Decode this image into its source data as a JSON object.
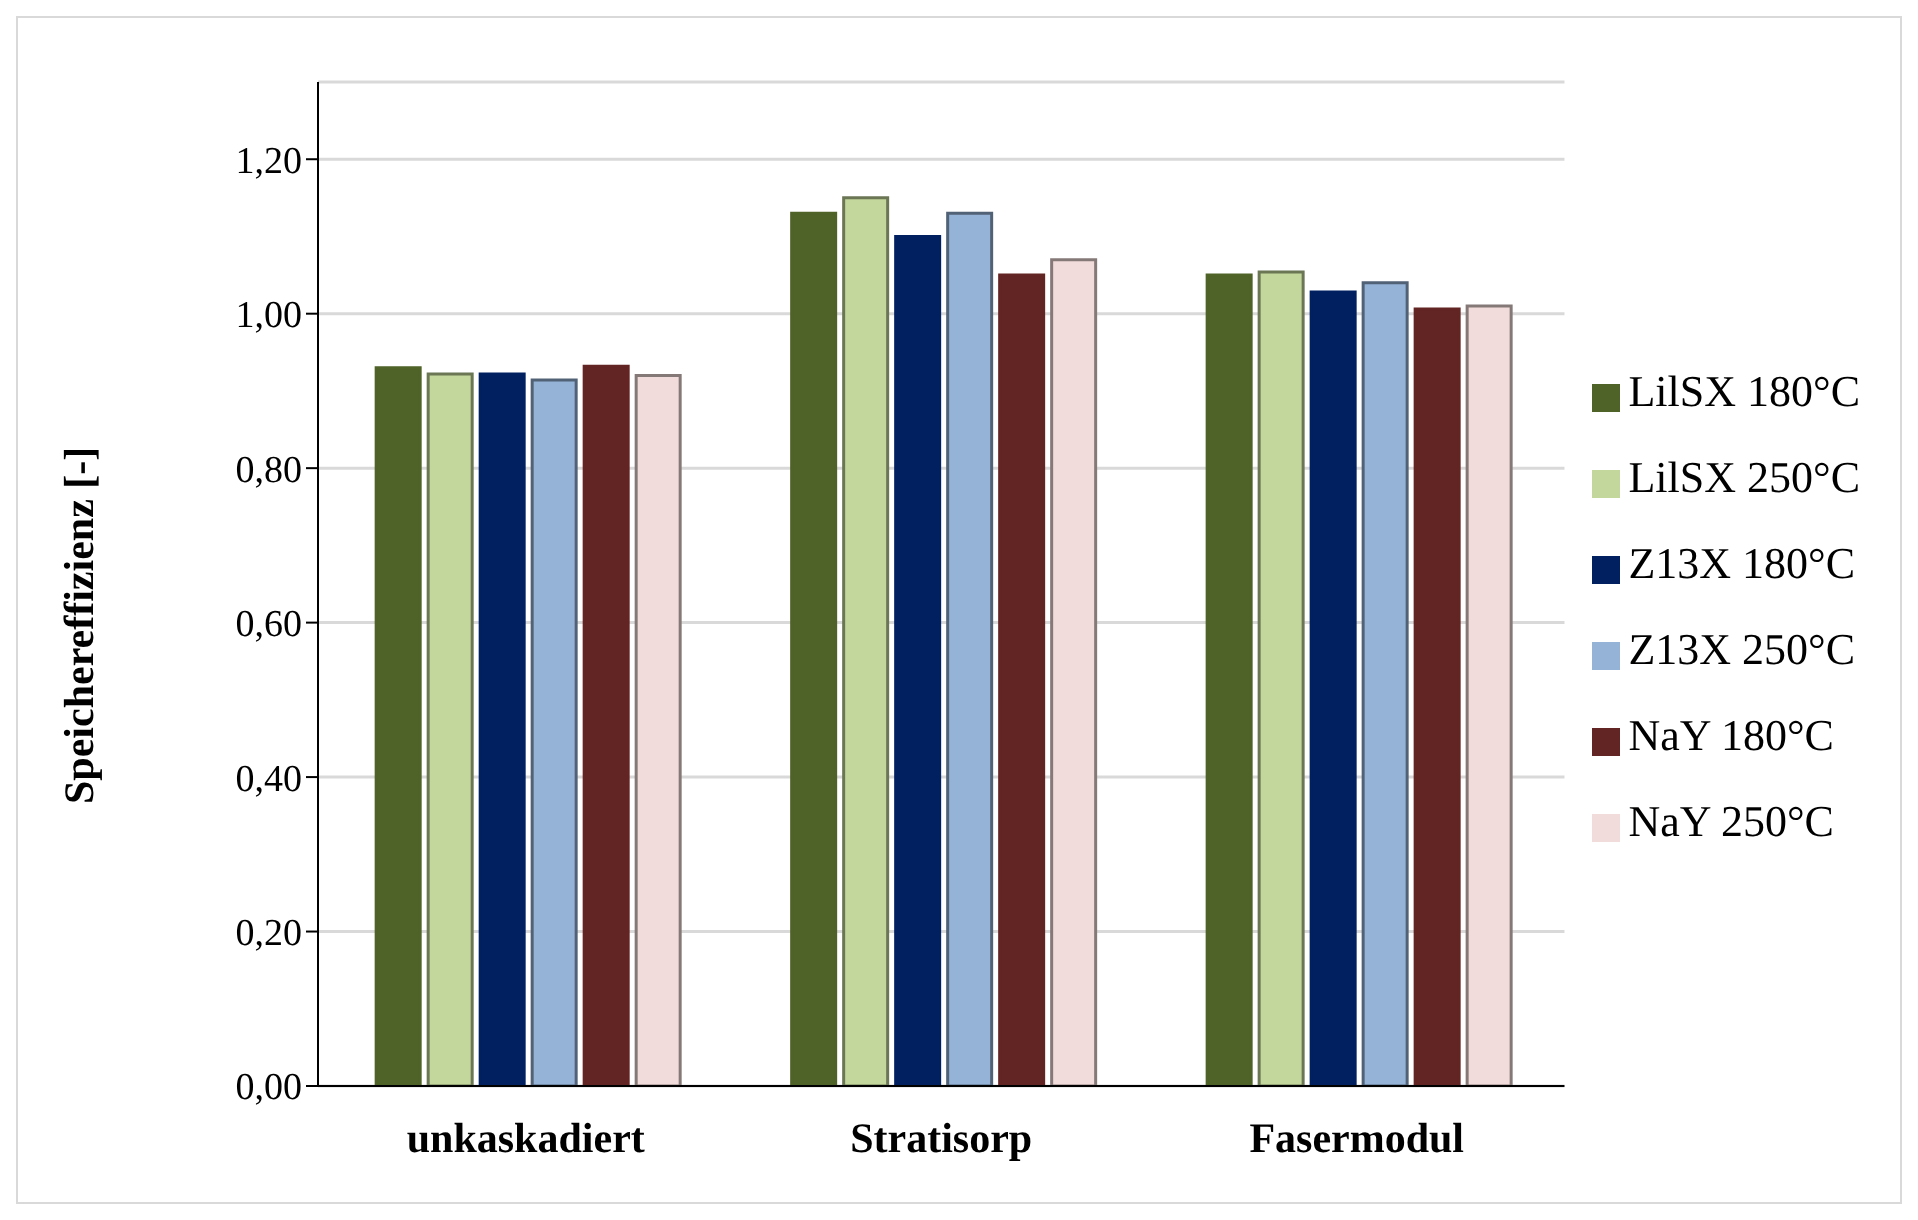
{
  "chart_data": {
    "type": "bar",
    "ylabel": "Speichereffizienz [-]",
    "categories": [
      "unkaskadiert",
      "Stratisorp",
      "Fasermodul"
    ],
    "series": [
      {
        "name": "LilSX 180°C",
        "color": "#4f6228",
        "values": [
          0.93,
          1.13,
          1.05
        ]
      },
      {
        "name": "LilSX 250°C",
        "color": "#c3d69b",
        "values": [
          0.922,
          1.15,
          1.054
        ]
      },
      {
        "name": "Z13X 180°C",
        "color": "#002060",
        "values": [
          0.922,
          1.1,
          1.028
        ]
      },
      {
        "name": "Z13X 250°C",
        "color": "#95b3d7",
        "values": [
          0.914,
          1.13,
          1.04
        ]
      },
      {
        "name": "NaY 180°C",
        "color": "#632523",
        "values": [
          0.932,
          1.05,
          1.006
        ]
      },
      {
        "name": "NaY 250°C",
        "color": "#f2dcdb",
        "values": [
          0.92,
          1.07,
          1.01
        ]
      }
    ],
    "ylim": [
      0,
      1.3
    ],
    "yticks": [
      {
        "value": 0,
        "label": "0,00"
      },
      {
        "value": 0.2,
        "label": "0,20"
      },
      {
        "value": 0.4,
        "label": "0,40"
      },
      {
        "value": 0.6,
        "label": "0,60"
      },
      {
        "value": 0.8,
        "label": "0,80"
      },
      {
        "value": 1,
        "label": "1,00"
      },
      {
        "value": 1.2,
        "label": "1,20"
      }
    ],
    "grid": "y",
    "legend": "right"
  }
}
